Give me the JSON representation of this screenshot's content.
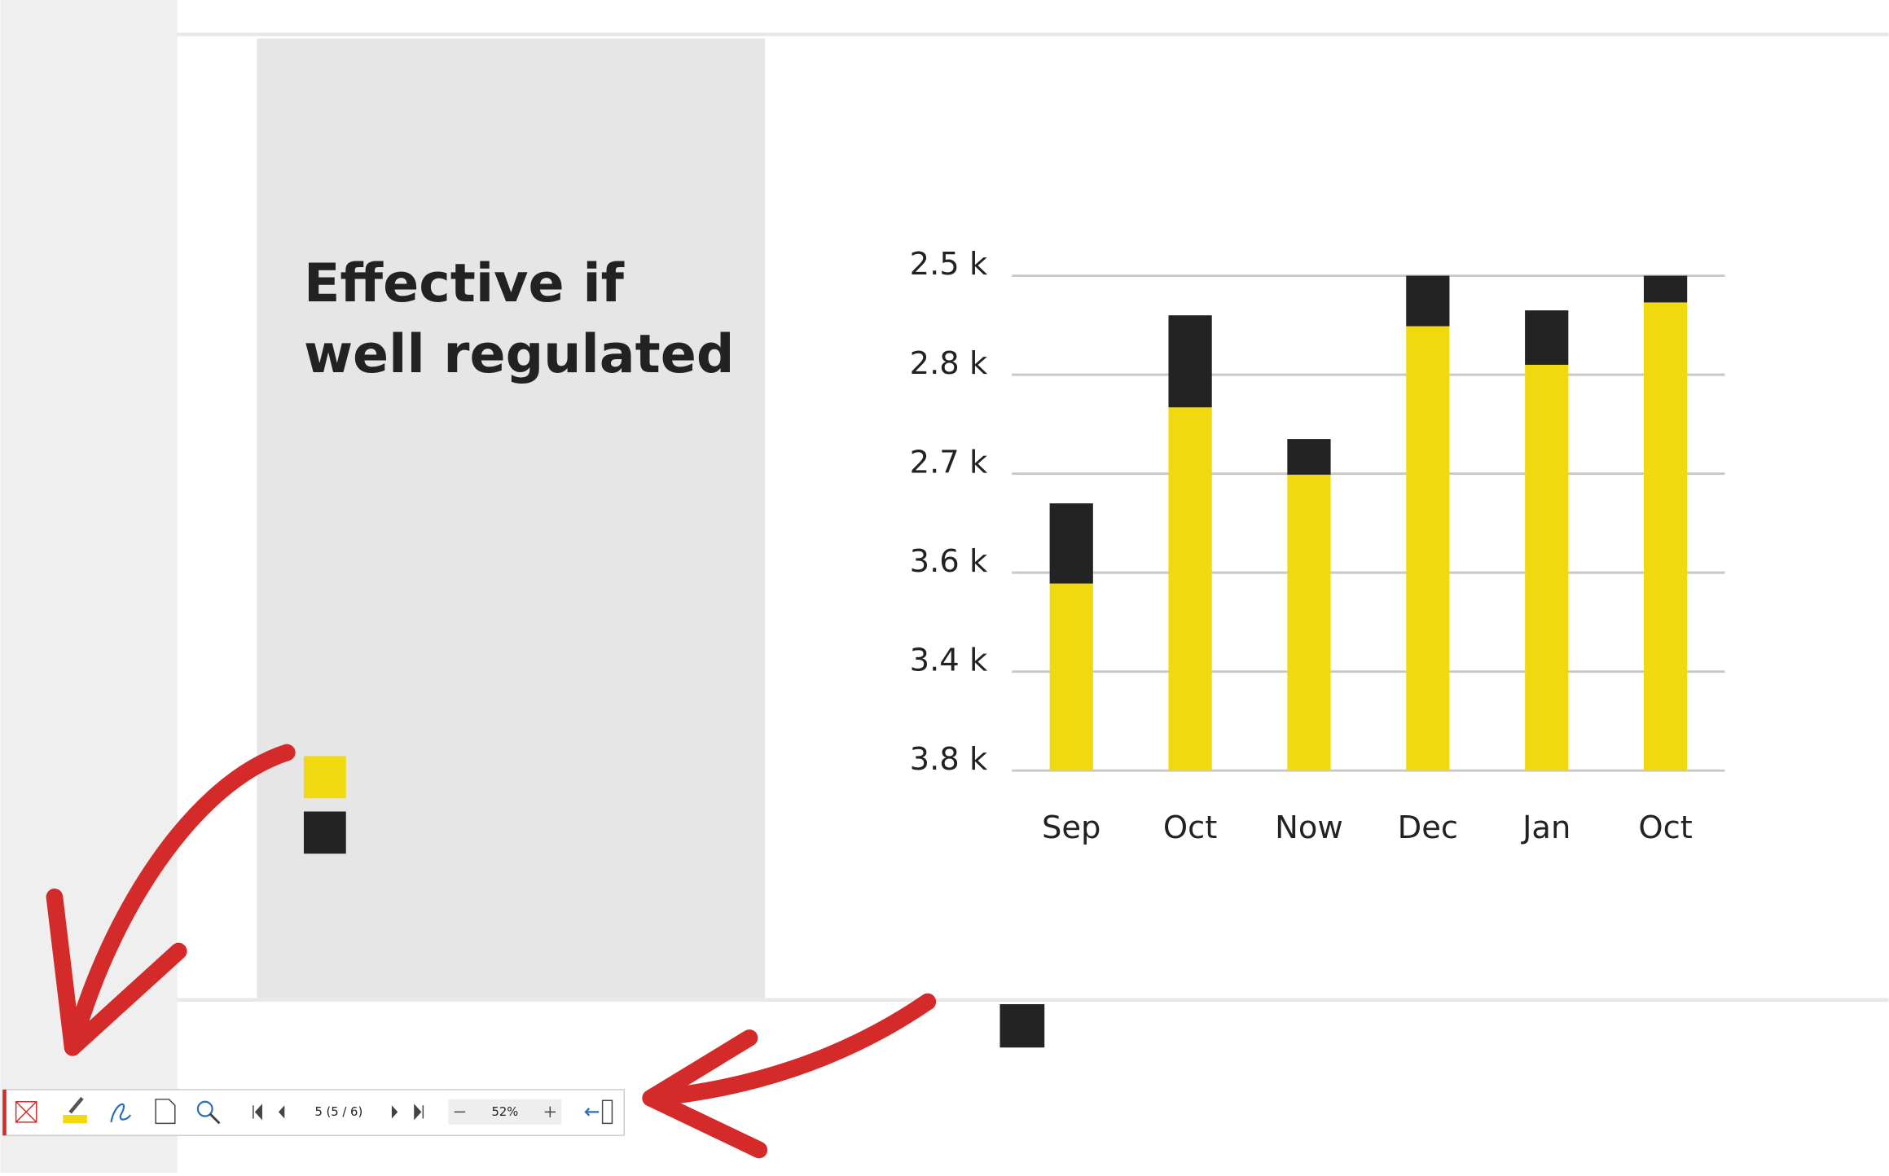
{
  "slide": {
    "title_lines": [
      "Effective if",
      "well regulated"
    ]
  },
  "chart_data": {
    "type": "bar",
    "stacked": true,
    "categories": [
      "Sep",
      "Oct",
      "Now",
      "Dec",
      "Jan",
      "Oct"
    ],
    "series": [
      {
        "color": "#f0d90e",
        "values": [
          1.89,
          3.67,
          2.99,
          4.49,
          4.1,
          4.73
        ]
      },
      {
        "color": "#232323",
        "values": [
          0.81,
          0.93,
          0.36,
          0.51,
          0.55,
          0.27
        ]
      }
    ],
    "ylim": [
      0,
      5
    ],
    "yticks": [
      {
        "value": 0,
        "label": "3.8 k"
      },
      {
        "value": 1,
        "label": "3.4 k"
      },
      {
        "value": 2,
        "label": "3.6 k"
      },
      {
        "value": 3,
        "label": "2.7 k"
      },
      {
        "value": 4,
        "label": "2.8 k"
      },
      {
        "value": 5,
        "label": "2.5 k"
      }
    ],
    "grid": true
  },
  "toolbar": {
    "page": "5 (5 / 6)",
    "zoom": "52%"
  }
}
